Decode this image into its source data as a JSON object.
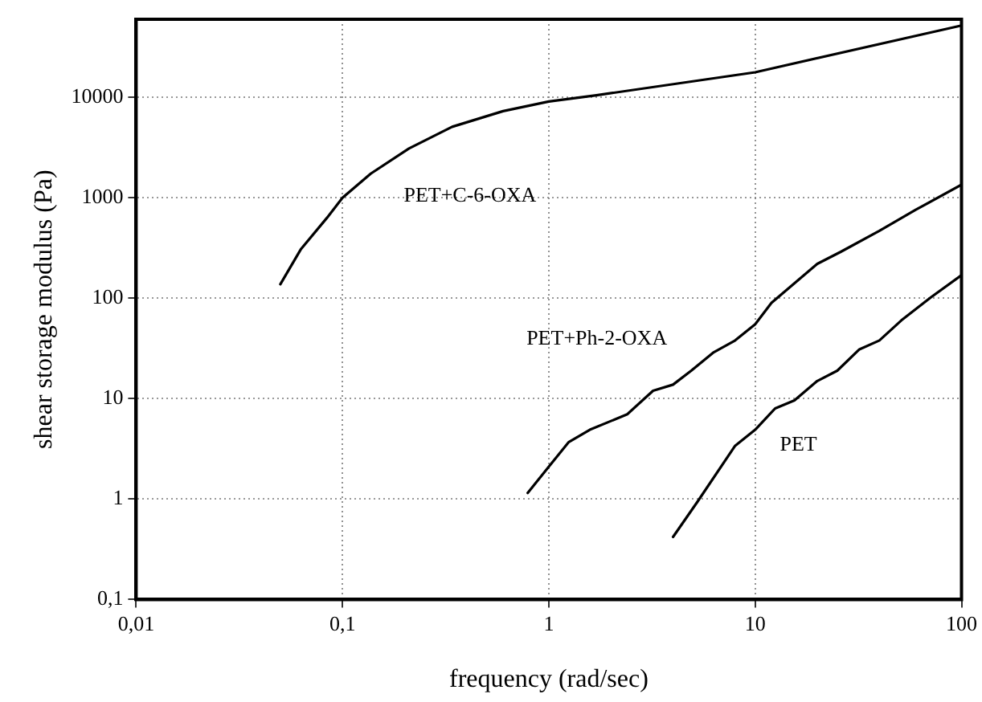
{
  "chart_data": {
    "type": "line",
    "xlabel": "frequency (rad/sec)",
    "ylabel": "shear storage modulus (Pa)",
    "log": "xy",
    "grid": true,
    "legend": false,
    "marker": "none",
    "line_style": "solid",
    "xlim": [
      0.01,
      100
    ],
    "xticks": [
      {
        "value": 0.01,
        "label": "0,01"
      },
      {
        "value": 0.1,
        "label": "0,1"
      },
      1,
      10,
      100
    ],
    "ylim": [
      0.1,
      60000
    ],
    "yticks": [
      {
        "value": 0.1,
        "label": "0,1"
      },
      1,
      10,
      100,
      1000,
      10000
    ],
    "series": [
      {
        "name": "PET+C-6-OXA",
        "color": "#000000",
        "x": [
          0.05,
          0.063,
          0.084,
          0.1,
          0.137,
          0.21,
          0.34,
          0.6,
          1,
          1.7,
          10,
          100
        ],
        "values": [
          138,
          310,
          630,
          1000,
          1740,
          3100,
          5100,
          7300,
          9100,
          10500,
          17800,
          52000
        ]
      },
      {
        "name": "PET+Ph-2-OXA",
        "color": "#000000",
        "x": [
          0.79,
          1,
          1.25,
          1.58,
          2.4,
          3.2,
          4,
          4.9,
          6.3,
          8,
          10,
          12,
          20,
          26,
          40,
          60,
          100
        ],
        "values": [
          1.15,
          2.1,
          3.7,
          4.9,
          7,
          12,
          13.8,
          19,
          29,
          38,
          55,
          90,
          220,
          290,
          470,
          760,
          1350
        ]
      },
      {
        "name": "PET",
        "color": "#000000",
        "x": [
          4,
          5.25,
          8,
          10,
          12.5,
          15.5,
          20,
          25,
          32,
          40,
          51,
          71,
          100
        ],
        "values": [
          0.42,
          0.94,
          3.4,
          4.9,
          8,
          9.6,
          15,
          19,
          31,
          38,
          60,
          102,
          170
        ]
      }
    ]
  }
}
